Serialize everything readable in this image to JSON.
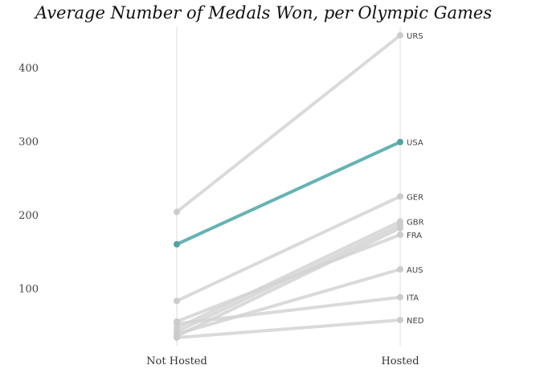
{
  "chart_data": {
    "type": "line",
    "title": "Average Number of Medals Won, per Olympic Games",
    "xlabel": "",
    "ylabel": "",
    "categories": [
      "Not Hosted",
      "Hosted"
    ],
    "ylim": [
      22,
      456
    ],
    "yticks": [
      100,
      200,
      300,
      400
    ],
    "grid": "vertical",
    "highlight": "USA",
    "colors": {
      "default": "#d4d4d4",
      "highlight": "#66b2b2"
    },
    "series": [
      {
        "name": "URS",
        "values": [
          204,
          444
        ]
      },
      {
        "name": "USA",
        "values": [
          160,
          299
        ]
      },
      {
        "name": "GER",
        "values": [
          83,
          225
        ]
      },
      {
        "name": "GBR",
        "values": [
          46,
          191
        ]
      },
      {
        "name": "FRA",
        "values": [
          55,
          173
        ]
      },
      {
        "name": "AUS",
        "values": [
          38,
          126
        ]
      },
      {
        "name": "ITA",
        "values": [
          52,
          88
        ]
      },
      {
        "name": "NED",
        "values": [
          33,
          57
        ]
      },
      {
        "name": "",
        "values": [
          41,
          186
        ]
      },
      {
        "name": "",
        "values": [
          35,
          182
        ]
      }
    ]
  }
}
